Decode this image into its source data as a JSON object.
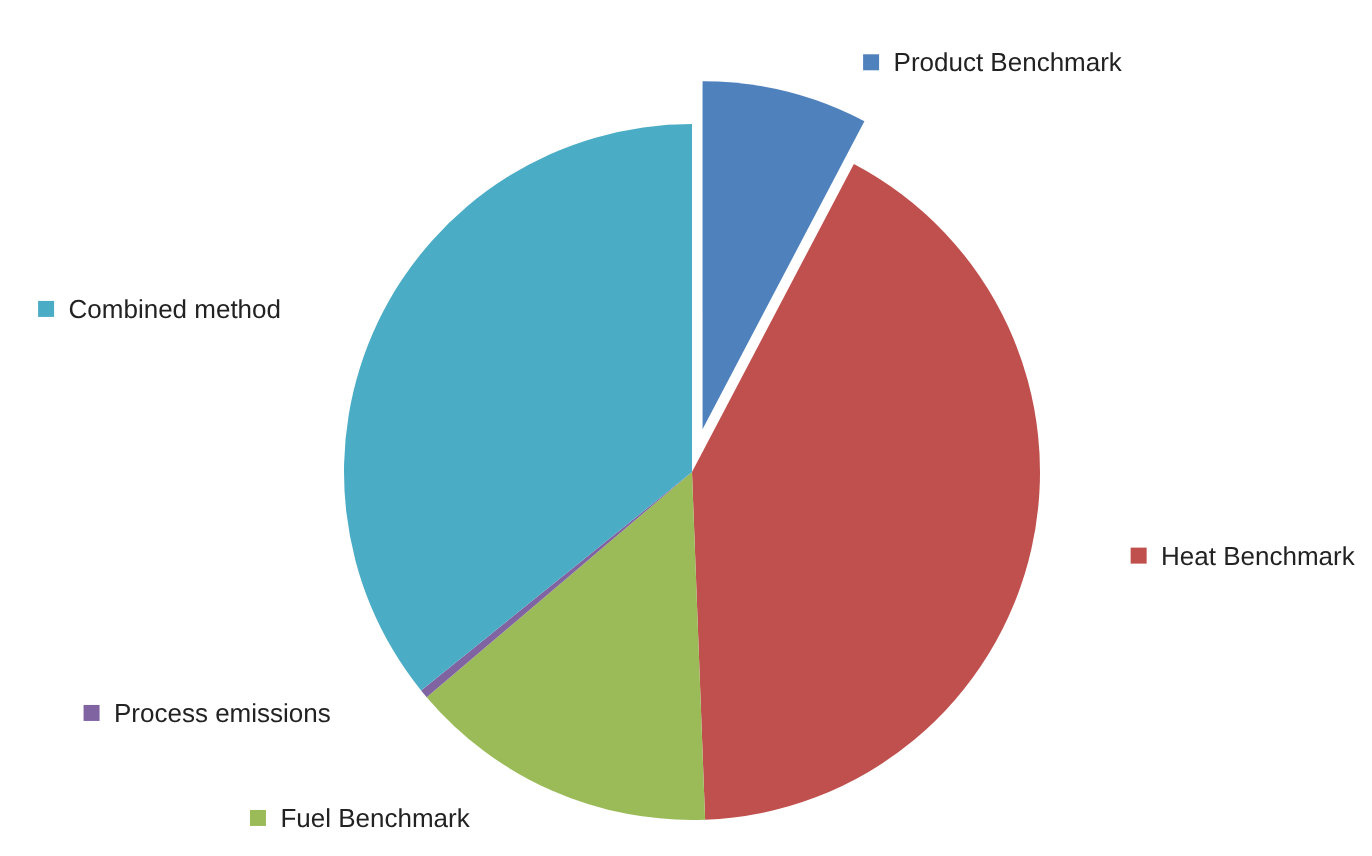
{
  "chart_data": {
    "type": "pie",
    "categories": [
      "Product Benchmark",
      "Heat Benchmark",
      "Fuel Benchmark",
      "Process emissions",
      "Combined method"
    ],
    "values": [
      7.7,
      41.7,
      14.4,
      0.4,
      35.8
    ],
    "colors": [
      "#4f81bd",
      "#c0504d",
      "#9bbb59",
      "#8064a2",
      "#4bacc6"
    ],
    "legend": "right"
  }
}
